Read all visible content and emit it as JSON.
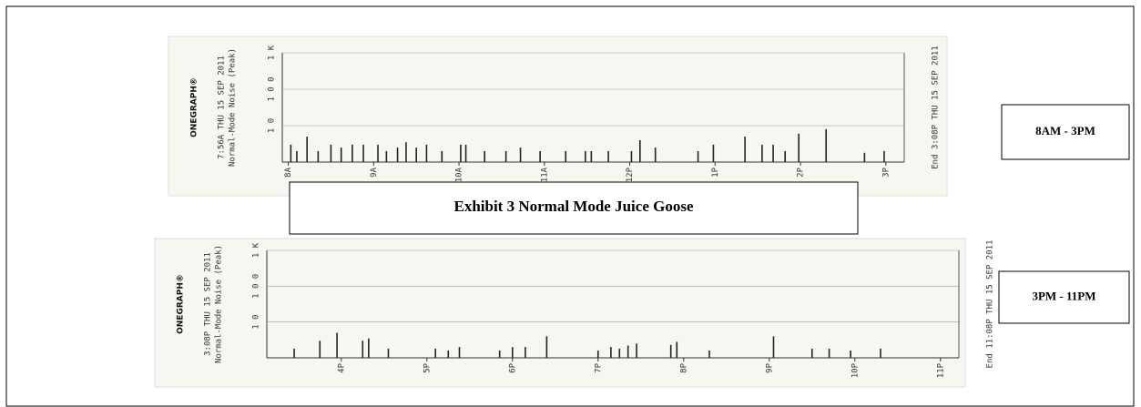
{
  "exhibit_title": "Exhibit 3 Normal Mode Juice Goose",
  "chart_data": [
    {
      "type": "bar",
      "brand": "ONEGRAPH®",
      "subtitle": "7:56A THU 15 SEP 2011",
      "ylabel": "Normal-Mode Noise (Peak)",
      "end_label": "End 3:08P THU 15 SEP 2011",
      "annotation": "8AM - 3PM",
      "log_y": true,
      "grid": true,
      "color": "#222",
      "ylim": [
        1,
        1000
      ],
      "yticks": [
        {
          "value": 1000,
          "label": "1 K"
        },
        {
          "value": 100,
          "label": "1 0 0"
        },
        {
          "value": 10,
          "label": "1 0"
        }
      ],
      "xlim": [
        7.93,
        15.13
      ],
      "xticks": [
        {
          "value": 8,
          "label": "8A"
        },
        {
          "value": 9,
          "label": "9A"
        },
        {
          "value": 10,
          "label": "10A"
        },
        {
          "value": 11,
          "label": "11A"
        },
        {
          "value": 12,
          "label": "12P"
        },
        {
          "value": 13,
          "label": "1P"
        },
        {
          "value": 14,
          "label": "2P"
        },
        {
          "value": 15,
          "label": "3P"
        }
      ],
      "x": [
        8.03,
        8.1,
        8.22,
        8.35,
        8.5,
        8.62,
        8.75,
        8.88,
        9.05,
        9.15,
        9.28,
        9.38,
        9.5,
        9.62,
        9.8,
        10.02,
        10.08,
        10.3,
        10.55,
        10.72,
        10.95,
        11.25,
        11.48,
        11.55,
        11.75,
        12.02,
        12.12,
        12.3,
        12.8,
        12.98,
        13.35,
        13.55,
        13.68,
        13.82,
        13.98,
        14.3,
        14.75,
        14.98
      ],
      "values": [
        3,
        2,
        5,
        2,
        3,
        2.5,
        3,
        3,
        3,
        2,
        2.5,
        3.5,
        2.5,
        3,
        2,
        3,
        3,
        2,
        2,
        2.5,
        2,
        2,
        2,
        2,
        2,
        2,
        4,
        2.5,
        2,
        3,
        5,
        3,
        3,
        2,
        6,
        8,
        1.8,
        2
      ]
    },
    {
      "type": "bar",
      "brand": "ONEGRAPH®",
      "subtitle": "3:08P THU 15 SEP 2011",
      "ylabel": "Normal-Mode Noise (Peak)",
      "end_label": "End 11:08P THU 15 SEP 2011",
      "annotation": "3PM - 11PM",
      "log_y": true,
      "grid": true,
      "color": "#222",
      "ylim": [
        1,
        1000
      ],
      "yticks": [
        {
          "value": 1000,
          "label": "1 K"
        },
        {
          "value": 100,
          "label": "1 0 0"
        },
        {
          "value": 10,
          "label": "1 0"
        }
      ],
      "xlim": [
        15.13,
        23.13
      ],
      "xticks": [
        {
          "value": 16,
          "label": "4P"
        },
        {
          "value": 17,
          "label": "5P"
        },
        {
          "value": 18,
          "label": "6P"
        },
        {
          "value": 19,
          "label": "7P"
        },
        {
          "value": 20,
          "label": "8P"
        },
        {
          "value": 21,
          "label": "9P"
        },
        {
          "value": 22,
          "label": "10P"
        },
        {
          "value": 23,
          "label": "11P"
        }
      ],
      "x": [
        15.45,
        15.75,
        15.95,
        16.25,
        16.32,
        16.55,
        17.1,
        17.25,
        17.38,
        17.85,
        18.0,
        18.15,
        18.4,
        19.0,
        19.15,
        19.25,
        19.35,
        19.45,
        19.85,
        19.92,
        20.3,
        21.05,
        21.5,
        21.7,
        21.95,
        22.3
      ],
      "values": [
        1.8,
        3,
        5,
        3,
        3.5,
        1.8,
        1.8,
        1.6,
        2,
        1.6,
        2,
        2,
        4,
        1.6,
        2,
        1.8,
        2.2,
        2.5,
        2.3,
        2.8,
        1.6,
        4,
        1.8,
        1.8,
        1.6,
        1.8
      ]
    }
  ]
}
